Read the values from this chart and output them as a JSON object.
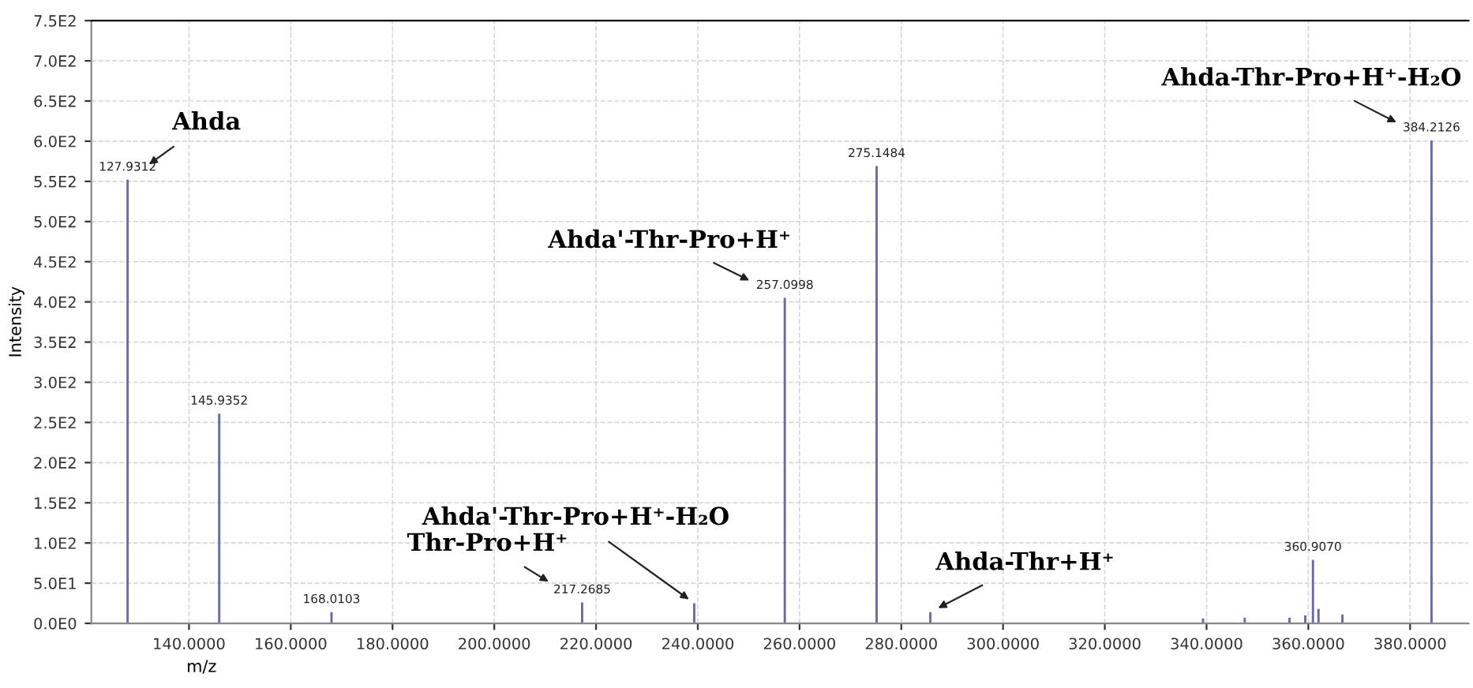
{
  "chart_data": {
    "type": "bar",
    "xlabel": "m/z",
    "ylabel": "Intensity",
    "x": [
      127.9312,
      145.9352,
      168.0103,
      217.2685,
      239.3,
      257.0998,
      275.1484,
      285.7,
      339.3,
      340.5,
      347.5,
      356.3,
      359.4,
      360.907,
      362.0,
      366.7,
      384.2126
    ],
    "values": [
      552,
      261,
      14,
      26,
      25,
      405,
      569,
      14,
      6,
      null,
      7,
      7,
      10,
      79,
      18,
      11,
      601
    ],
    "color": "#6a6aa8",
    "xlim": [
      120.8,
      391.5
    ],
    "xticks": [
      {
        "value": 140,
        "label": "140.0000"
      },
      {
        "value": 160,
        "label": "160.0000"
      },
      {
        "value": 180,
        "label": "180.0000"
      },
      {
        "value": 200,
        "label": "200.0000"
      },
      {
        "value": 220,
        "label": "220.0000"
      },
      {
        "value": 240,
        "label": "240.0000"
      },
      {
        "value": 260,
        "label": "260.0000"
      },
      {
        "value": 280,
        "label": "280.0000"
      },
      {
        "value": 300,
        "label": "300.0000"
      },
      {
        "value": 320,
        "label": "320.0000"
      },
      {
        "value": 340,
        "label": "340.0000"
      },
      {
        "value": 360,
        "label": "360.0000"
      },
      {
        "value": 380,
        "label": "380.0000"
      }
    ],
    "ylim": [
      0,
      750
    ],
    "yticks": [
      {
        "value": 0,
        "label": "0.0E0"
      },
      {
        "value": 50,
        "label": "5.0E1"
      },
      {
        "value": 100,
        "label": "1.0E2"
      },
      {
        "value": 150,
        "label": "1.5E2"
      },
      {
        "value": 200,
        "label": "2.0E2"
      },
      {
        "value": 250,
        "label": "2.5E2"
      },
      {
        "value": 300,
        "label": "3.0E2"
      },
      {
        "value": 350,
        "label": "3.5E2"
      },
      {
        "value": 400,
        "label": "4.0E2"
      },
      {
        "value": 450,
        "label": "4.5E2"
      },
      {
        "value": 500,
        "label": "5.0E2"
      },
      {
        "value": 550,
        "label": "5.5E2"
      },
      {
        "value": 600,
        "label": "6.0E2"
      },
      {
        "value": 650,
        "label": "6.5E2"
      },
      {
        "value": 700,
        "label": "7.0E2"
      },
      {
        "value": 750,
        "label": "7.5E2"
      }
    ],
    "grid": true,
    "legend": false,
    "annotations": [
      {
        "text": "Ahda",
        "x": 127.9312,
        "y": 552
      },
      {
        "text": "Ahda'-Thr-Pro+H⁺",
        "x": 257.0998,
        "y": 405
      },
      {
        "text": "Ahda'-Thr-Pro+H⁺-H₂O",
        "x": 239.3,
        "y": 25
      },
      {
        "text": "Thr-Pro+H⁺",
        "x": 217.2685,
        "y": 26
      },
      {
        "text": "Ahda-Thr+H⁺",
        "x": 285.7,
        "y": 14
      },
      {
        "text": "Ahda-Thr-Pro+H⁺-H₂O",
        "x": 384.2126,
        "y": 601
      },
      {
        "text": "127.9312",
        "x": 127.9312,
        "y": 552
      },
      {
        "text": "145.9352",
        "x": 145.9352,
        "y": 261
      },
      {
        "text": "168.0103",
        "x": 168.0103,
        "y": 14
      },
      {
        "text": "217.2685",
        "x": 217.2685,
        "y": 26
      },
      {
        "text": "257.0998",
        "x": 257.0998,
        "y": 405
      },
      {
        "text": "275.1484",
        "x": 275.1484,
        "y": 569
      },
      {
        "text": "360.9070",
        "x": 360.907,
        "y": 79
      },
      {
        "text": "384.2126",
        "x": 384.2126,
        "y": 601
      }
    ]
  }
}
